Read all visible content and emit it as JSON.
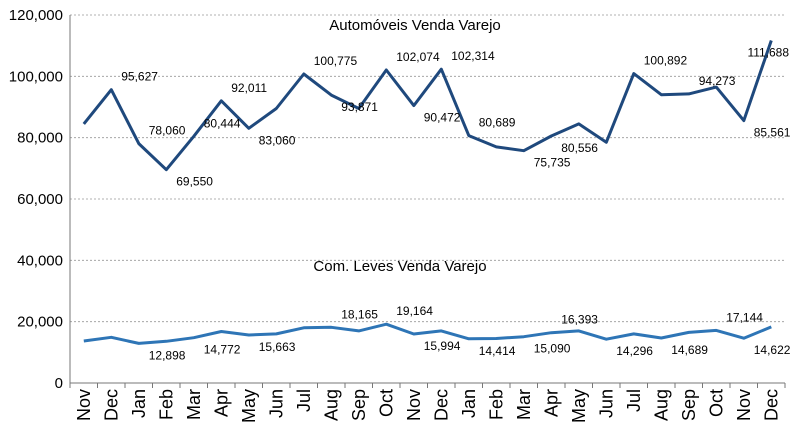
{
  "chart_data": {
    "type": "line",
    "categories": [
      "Nov",
      "Dec",
      "Jan",
      "Feb",
      "Mar",
      "Apr",
      "May",
      "Jun",
      "Jul",
      "Aug",
      "Sep",
      "Oct",
      "Nov",
      "Dec",
      "Jan",
      "Feb",
      "Mar",
      "Apr",
      "May",
      "Jun",
      "Jul",
      "Aug",
      "Sep",
      "Oct",
      "Nov",
      "Dec"
    ],
    "ylim": [
      0,
      120000
    ],
    "yticks": [
      "0",
      "20,000",
      "40,000",
      "60,000",
      "80,000",
      "100,000",
      "120,000"
    ],
    "grid": true,
    "colors": {
      "autos": "#1F497D",
      "leves": "#2E75B6",
      "grid": "#999999"
    },
    "series": [
      {
        "name": "Automóveis Venda Varejo",
        "values": [
          84500,
          95627,
          78060,
          69550,
          80444,
          92011,
          83060,
          89500,
          100775,
          93871,
          89500,
          102074,
          90472,
          102314,
          80689,
          77000,
          75735,
          80556,
          84500,
          78500,
          100892,
          94000,
          94273,
          96500,
          85561,
          111688
        ],
        "labels": [
          "",
          "95,627",
          "78,060",
          "69,550",
          "80,444",
          "92,011",
          "83,060",
          "",
          "100,775",
          "93,871",
          "",
          "102,074",
          "90,472",
          "102,314",
          "80,689",
          "",
          "75,735",
          "80,556",
          "",
          "",
          "100,892",
          "",
          "94,273",
          "",
          "85,561",
          "111,688"
        ]
      },
      {
        "name": "Com. Leves Venda Varejo",
        "values": [
          13700,
          14900,
          12898,
          13600,
          14772,
          16800,
          15663,
          16000,
          18000,
          18165,
          17000,
          19164,
          15994,
          17000,
          14414,
          14500,
          15090,
          16393,
          17000,
          14296,
          16000,
          14689,
          16500,
          17144,
          14622,
          18300
        ],
        "labels": [
          "",
          "",
          "12,898",
          "",
          "14,772",
          "",
          "15,663",
          "",
          "",
          "18,165",
          "",
          "19,164",
          "15,994",
          "",
          "14,414",
          "",
          "15,090",
          "16,393",
          "",
          "14,296",
          "",
          "14,689",
          "",
          "17,144",
          "14,622",
          ""
        ]
      }
    ]
  }
}
